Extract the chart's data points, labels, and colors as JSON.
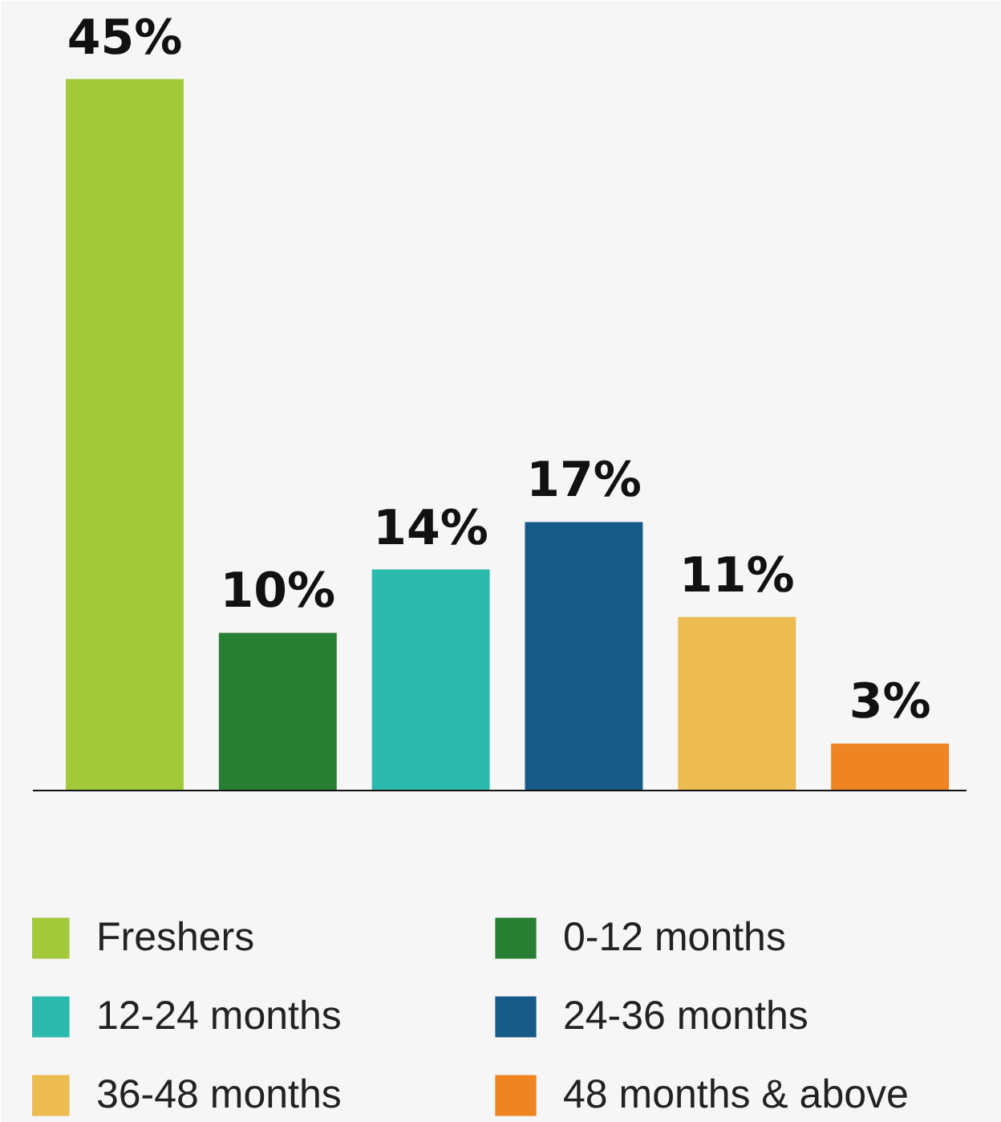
{
  "chart_data": {
    "type": "bar",
    "stacked": true,
    "categories": [
      null,
      null,
      null,
      null,
      null,
      null
    ],
    "series": [
      {
        "name": "Freshers",
        "color": "#a2c93a",
        "values": [
          45,
          null,
          null,
          null,
          null,
          null
        ],
        "value_labels": [
          "45%",
          null,
          null,
          null,
          null,
          null
        ]
      },
      {
        "name": "0-12 months",
        "color": "#287f34",
        "values": [
          null,
          10,
          null,
          null,
          null,
          null
        ],
        "value_labels": [
          null,
          "10%",
          null,
          null,
          null,
          null
        ]
      },
      {
        "name": "12-24 months",
        "color": "#2cbaae",
        "values": [
          null,
          null,
          14,
          null,
          null,
          null
        ],
        "value_labels": [
          null,
          null,
          "14%",
          null,
          null,
          null
        ]
      },
      {
        "name": "24-36 months",
        "color": "#185a87",
        "values": [
          null,
          null,
          null,
          17,
          null,
          null
        ],
        "value_labels": [
          null,
          null,
          null,
          "17%",
          null,
          null
        ]
      },
      {
        "name": "36-48 months",
        "color": "#ecbc51",
        "values": [
          null,
          null,
          null,
          null,
          11,
          null
        ],
        "value_labels": [
          null,
          null,
          null,
          null,
          "11%",
          null
        ]
      },
      {
        "name": "48 months & above",
        "color": "#ee8422",
        "values": [
          null,
          null,
          null,
          null,
          null,
          3
        ],
        "value_labels": [
          null,
          null,
          null,
          null,
          null,
          "3%"
        ]
      }
    ],
    "legend": "bottom",
    "tick_labels": false,
    "grid": false
  }
}
